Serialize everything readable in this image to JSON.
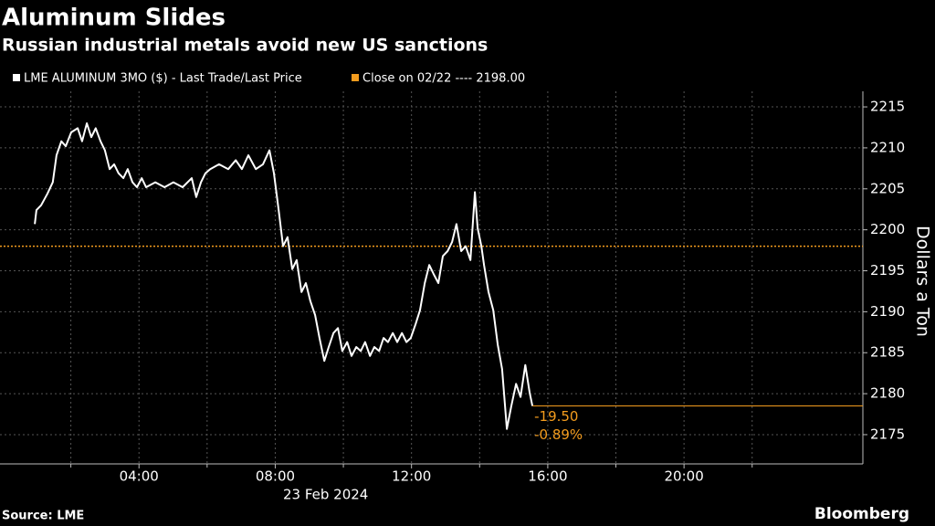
{
  "chart_data": {
    "type": "line",
    "title": "Aluminum Slides",
    "subtitle": "Russian industrial metals avoid new US sanctions",
    "x_label": "23 Feb 2024",
    "y_label": "Dollars a Ton",
    "source": "Source: LME",
    "brand": "Bloomberg",
    "reference": {
      "label": "Close on 02/22 ---- 2198.00",
      "value": 2198,
      "color": "#f39c1e"
    },
    "change": {
      "value": -19.5,
      "label": "-19.50"
    },
    "change_pct": {
      "value": -0.89,
      "label": "-0.89%"
    },
    "x": [
      0.94,
      0.99,
      1.13,
      1.31,
      1.47,
      1.58,
      1.72,
      1.85,
      2.01,
      2.2,
      2.33,
      2.47,
      2.6,
      2.73,
      2.87,
      3.0,
      3.14,
      3.27,
      3.4,
      3.54,
      3.67,
      3.81,
      3.94,
      4.08,
      4.21,
      4.48,
      4.75,
      5.01,
      5.28,
      5.55,
      5.68,
      5.82,
      5.95,
      6.09,
      6.35,
      6.62,
      6.84,
      7.02,
      7.21,
      7.43,
      7.64,
      7.83,
      7.96,
      8.1,
      8.23,
      8.36,
      8.5,
      8.63,
      8.77,
      8.9,
      9.03,
      9.17,
      9.3,
      9.44,
      9.57,
      9.71,
      9.84,
      9.97,
      10.11,
      10.24,
      10.38,
      10.51,
      10.64,
      10.78,
      10.91,
      11.05,
      11.18,
      11.31,
      11.45,
      11.58,
      11.72,
      11.85,
      11.98,
      12.12,
      12.25,
      12.39,
      12.52,
      12.65,
      12.79,
      12.92,
      13.06,
      13.19,
      13.32,
      13.46,
      13.59,
      13.73,
      13.86,
      13.94,
      14.05,
      14.13,
      14.26,
      14.4,
      14.53,
      14.66,
      14.8,
      14.93,
      15.07,
      15.2,
      15.34,
      15.47,
      15.55
    ],
    "series": [
      {
        "name": "LME ALUMINUM  3MO ($) - Last Trade/Last Price",
        "color": "#ffffff",
        "values": [
          2200.7,
          2202.4,
          2203,
          2204.4,
          2205.8,
          2209.1,
          2210.8,
          2210.2,
          2211.9,
          2212.4,
          2210.8,
          2213,
          2211.3,
          2212.4,
          2210.8,
          2209.7,
          2207.4,
          2208,
          2206.9,
          2206.3,
          2207.4,
          2205.8,
          2205.2,
          2206.3,
          2205.2,
          2205.8,
          2205.2,
          2205.8,
          2205.2,
          2206.3,
          2204,
          2205.8,
          2206.9,
          2207.4,
          2208,
          2207.4,
          2208.5,
          2207.4,
          2209.1,
          2207.4,
          2208,
          2209.7,
          2206.9,
          2202.4,
          2198,
          2199.1,
          2195.2,
          2196.3,
          2192.4,
          2193.5,
          2191.3,
          2189.6,
          2186.8,
          2184,
          2185.7,
          2187.4,
          2188,
          2185.2,
          2186.3,
          2184.6,
          2185.7,
          2185.2,
          2186.3,
          2184.6,
          2185.7,
          2185.2,
          2186.8,
          2186.3,
          2187.4,
          2186.3,
          2187.4,
          2186.3,
          2186.8,
          2188.5,
          2190.2,
          2193.5,
          2195.7,
          2194.6,
          2193.5,
          2196.8,
          2197.4,
          2198.5,
          2200.7,
          2197.4,
          2198,
          2196.3,
          2204.6,
          2200.2,
          2198,
          2195.7,
          2192.4,
          2190.2,
          2186,
          2183,
          2175.7,
          2178.5,
          2181.2,
          2179.6,
          2183.5,
          2180.1,
          2178.5
        ]
      }
    ],
    "xlim": [
      -0.08,
      25.25
    ],
    "ylim": [
      2171.43,
      2216.9
    ],
    "xticks": [
      {
        "value": 4,
        "label": "04:00"
      },
      {
        "value": 8,
        "label": "08:00"
      },
      {
        "value": 12,
        "label": "12:00"
      },
      {
        "value": 16,
        "label": "16:00"
      },
      {
        "value": 20,
        "label": "20:00"
      }
    ],
    "xminor_ticks": [
      2,
      6,
      10,
      14,
      18,
      22
    ],
    "yticks": [
      2175,
      2180,
      2185,
      2190,
      2195,
      2200,
      2205,
      2210,
      2215
    ],
    "grid": true
  }
}
